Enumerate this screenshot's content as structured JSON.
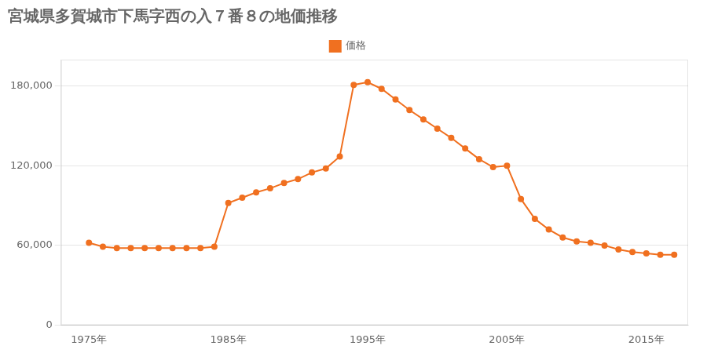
{
  "chart_data": {
    "type": "line",
    "title": "宮城県多賀城市下馬字西の入７番８の地価推移",
    "x": [
      1975,
      1976,
      1977,
      1978,
      1979,
      1980,
      1981,
      1982,
      1983,
      1984,
      1985,
      1986,
      1987,
      1988,
      1989,
      1990,
      1991,
      1992,
      1993,
      1994,
      1995,
      1996,
      1997,
      1998,
      1999,
      2000,
      2001,
      2002,
      2003,
      2004,
      2005,
      2006,
      2007,
      2008,
      2009,
      2010,
      2011,
      2012,
      2013,
      2014,
      2015,
      2016,
      2017
    ],
    "series": [
      {
        "name": "価格",
        "color": "#f07020",
        "marker": "circle",
        "values": [
          62000,
          59000,
          58000,
          58000,
          58000,
          58000,
          58000,
          58000,
          58000,
          59000,
          92000,
          96000,
          100000,
          103000,
          107000,
          110000,
          115000,
          118000,
          127000,
          181000,
          183000,
          178000,
          170000,
          162000,
          155000,
          148000,
          141000,
          133000,
          125000,
          119000,
          120000,
          95000,
          80000,
          72000,
          66000,
          63000,
          62000,
          60000,
          57000,
          55000,
          54000,
          53000,
          53000
        ]
      }
    ],
    "xlim": [
      1973,
      2018
    ],
    "xticks": [
      {
        "value": 1975,
        "label": "1975年"
      },
      {
        "value": 1985,
        "label": "1985年"
      },
      {
        "value": 1995,
        "label": "1995年"
      },
      {
        "value": 2005,
        "label": "2005年"
      },
      {
        "value": 2015,
        "label": "2015年"
      }
    ],
    "ylim": [
      0,
      200000
    ],
    "yticks": [
      0,
      {
        "value": 60000,
        "label": "60,000"
      },
      {
        "value": 120000,
        "label": "120,000"
      },
      {
        "value": 180000,
        "label": "180,000"
      }
    ],
    "grid": "y",
    "legend": "top"
  }
}
